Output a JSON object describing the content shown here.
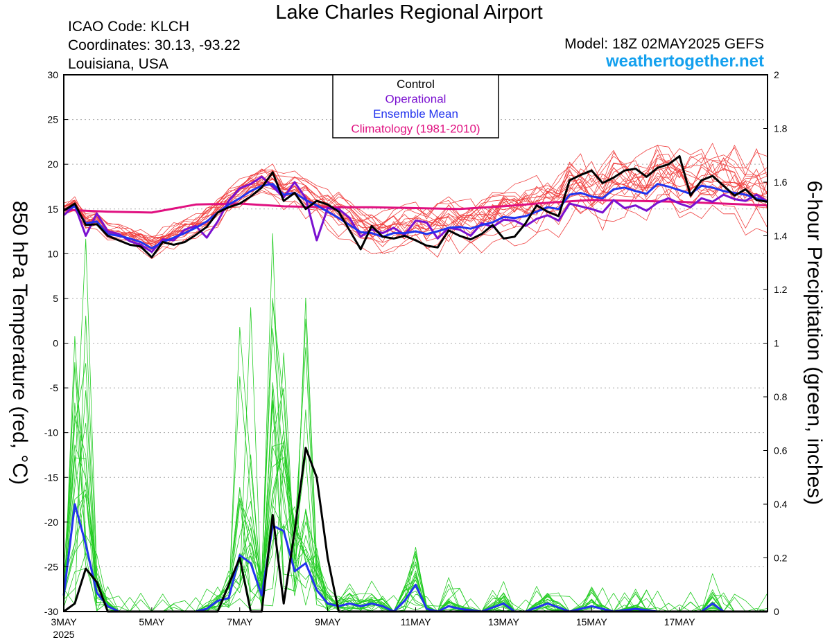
{
  "header": {
    "title": "Lake Charles Regional Airport",
    "icao": "ICAO Code: KLCH",
    "coordinates": "Coordinates: 30.13, -93.22",
    "region": "Louisiana, USA",
    "model": "Model: 18Z 02MAY2025 GEFS",
    "site": "weathertogether.net"
  },
  "colors": {
    "control": "#000000",
    "operational": "#7a10d0",
    "ensemble_mean": "#2233ee",
    "climatology": "#e01080",
    "members_temp": "#f04040",
    "members_precip": "#22cc22"
  },
  "chart_data": {
    "type": "line",
    "left_axis": {
      "label": "850 hPa Temperature (red, °C)",
      "ylim": [
        -30,
        30
      ],
      "ticks": [
        -30,
        -25,
        -20,
        -15,
        -10,
        -5,
        0,
        5,
        10,
        15,
        20,
        25,
        30
      ]
    },
    "right_axis": {
      "label": "6-hour Precipitation (green, inches)",
      "ylim": [
        0,
        2
      ],
      "ticks": [
        0,
        0.2,
        0.4,
        0.6,
        0.8,
        1,
        1.2,
        1.4,
        1.6,
        1.8,
        2
      ]
    },
    "x_ticks": [
      "3MAY",
      "5MAY",
      "7MAY",
      "9MAY",
      "11MAY",
      "13MAY",
      "15MAY",
      "17MAY"
    ],
    "x_year": "2025",
    "x_start_day": 3,
    "x_end_day": 19,
    "grid": true,
    "legend": {
      "position": "top-center",
      "items": [
        {
          "label": "Control",
          "color": "#000000"
        },
        {
          "label": "Operational",
          "color": "#7a10d0"
        },
        {
          "label": "Ensemble Mean",
          "color": "#2233ee"
        },
        {
          "label": "Climatology (1981-2010)",
          "color": "#e01080"
        }
      ]
    },
    "temperature": {
      "climatology": [
        [
          3.0,
          14.9
        ],
        [
          3.5,
          14.8
        ],
        [
          4.0,
          14.7
        ],
        [
          5.0,
          14.6
        ],
        [
          6.0,
          15.5
        ],
        [
          7.0,
          15.6
        ],
        [
          8.0,
          15.3
        ],
        [
          9.0,
          15.2
        ],
        [
          10.0,
          15.2
        ],
        [
          11.0,
          15.1
        ],
        [
          12.0,
          15.0
        ],
        [
          13.0,
          15.3
        ],
        [
          14.0,
          15.7
        ],
        [
          15.0,
          16.0
        ],
        [
          16.0,
          15.9
        ],
        [
          17.0,
          15.8
        ],
        [
          18.0,
          15.6
        ],
        [
          19.0,
          15.4
        ]
      ],
      "control": [
        [
          3.0,
          14.8
        ],
        [
          3.25,
          15.6
        ],
        [
          3.5,
          13.2
        ],
        [
          3.75,
          13.3
        ],
        [
          4.0,
          12.0
        ],
        [
          4.25,
          11.5
        ],
        [
          4.5,
          11.0
        ],
        [
          4.75,
          10.8
        ],
        [
          5.0,
          9.6
        ],
        [
          5.25,
          11.3
        ],
        [
          5.5,
          11.0
        ],
        [
          5.75,
          11.3
        ],
        [
          6.0,
          12.1
        ],
        [
          6.25,
          13.0
        ],
        [
          6.5,
          14.6
        ],
        [
          6.75,
          15.2
        ],
        [
          7.0,
          15.6
        ],
        [
          7.25,
          16.4
        ],
        [
          7.5,
          17.4
        ],
        [
          7.75,
          19.1
        ],
        [
          8.0,
          15.9
        ],
        [
          8.25,
          16.8
        ],
        [
          8.5,
          15.0
        ],
        [
          8.75,
          15.9
        ],
        [
          9.0,
          15.5
        ],
        [
          9.25,
          14.7
        ],
        [
          9.5,
          12.6
        ],
        [
          9.75,
          10.5
        ],
        [
          10.0,
          13.1
        ],
        [
          10.25,
          11.9
        ],
        [
          10.5,
          11.7
        ],
        [
          10.75,
          12.0
        ],
        [
          11.0,
          11.5
        ],
        [
          11.25,
          10.9
        ],
        [
          11.5,
          10.7
        ],
        [
          11.75,
          12.6
        ],
        [
          12.0,
          12.0
        ],
        [
          12.25,
          11.6
        ],
        [
          12.5,
          12.2
        ],
        [
          12.75,
          13.2
        ],
        [
          13.0,
          11.7
        ],
        [
          13.25,
          11.9
        ],
        [
          13.5,
          13.4
        ],
        [
          13.75,
          15.4
        ],
        [
          14.0,
          14.7
        ],
        [
          14.25,
          14.2
        ],
        [
          14.5,
          18.2
        ],
        [
          14.75,
          18.8
        ],
        [
          15.0,
          19.3
        ],
        [
          15.25,
          17.9
        ],
        [
          15.5,
          18.5
        ],
        [
          15.75,
          19.3
        ],
        [
          16.0,
          19.5
        ],
        [
          16.25,
          18.6
        ],
        [
          16.5,
          19.6
        ],
        [
          16.75,
          20.0
        ],
        [
          17.0,
          20.9
        ],
        [
          17.25,
          16.5
        ],
        [
          17.5,
          18.2
        ],
        [
          17.75,
          18.7
        ],
        [
          18.0,
          17.6
        ],
        [
          18.25,
          16.5
        ],
        [
          18.5,
          17.2
        ],
        [
          18.75,
          16.0
        ],
        [
          19.0,
          15.8
        ]
      ],
      "operational": [
        [
          3.0,
          14.3
        ],
        [
          3.25,
          15.4
        ],
        [
          3.5,
          12.0
        ],
        [
          3.75,
          14.5
        ],
        [
          4.0,
          12.5
        ],
        [
          4.25,
          12.2
        ],
        [
          4.5,
          11.4
        ],
        [
          4.75,
          11.0
        ],
        [
          5.0,
          10.2
        ],
        [
          5.25,
          11.6
        ],
        [
          5.5,
          11.5
        ],
        [
          5.75,
          12.7
        ],
        [
          6.0,
          13.1
        ],
        [
          6.25,
          11.8
        ],
        [
          6.5,
          13.6
        ],
        [
          6.75,
          15.9
        ],
        [
          7.0,
          17.3
        ],
        [
          7.25,
          17.8
        ],
        [
          7.5,
          18.6
        ],
        [
          7.75,
          17.5
        ],
        [
          8.0,
          16.3
        ],
        [
          8.25,
          18.0
        ],
        [
          8.5,
          16.2
        ],
        [
          8.75,
          11.5
        ],
        [
          9.0,
          15.1
        ],
        [
          9.25,
          15.0
        ],
        [
          9.5,
          14.0
        ],
        [
          9.75,
          11.9
        ],
        [
          10.0,
          12.7
        ],
        [
          10.25,
          12.3
        ],
        [
          10.5,
          12.9
        ],
        [
          10.75,
          12.1
        ],
        [
          11.0,
          13.7
        ],
        [
          11.25,
          13.5
        ],
        [
          11.5,
          11.7
        ],
        [
          11.75,
          12.9
        ],
        [
          12.0,
          12.7
        ],
        [
          12.25,
          12.0
        ],
        [
          12.5,
          13.4
        ],
        [
          12.75,
          13.0
        ],
        [
          13.0,
          13.8
        ],
        [
          13.25,
          13.7
        ],
        [
          13.5,
          13.1
        ],
        [
          13.75,
          13.9
        ],
        [
          14.0,
          14.3
        ],
        [
          14.25,
          13.7
        ],
        [
          14.5,
          15.6
        ],
        [
          14.75,
          15.3
        ],
        [
          15.0,
          15.0
        ],
        [
          15.25,
          14.6
        ],
        [
          15.5,
          16.0
        ],
        [
          15.75,
          15.1
        ],
        [
          16.0,
          15.4
        ],
        [
          16.25,
          14.8
        ],
        [
          16.5,
          15.7
        ],
        [
          16.75,
          16.2
        ],
        [
          17.0,
          15.6
        ],
        [
          17.25,
          15.2
        ],
        [
          17.5,
          16.2
        ],
        [
          17.75,
          15.8
        ],
        [
          18.0,
          16.6
        ],
        [
          18.25,
          16.1
        ],
        [
          18.5,
          15.9
        ],
        [
          18.75,
          16.6
        ],
        [
          19.0,
          15.8
        ]
      ],
      "ensemble_mean": [
        [
          3.0,
          14.9
        ],
        [
          3.25,
          15.3
        ],
        [
          3.5,
          13.4
        ],
        [
          3.75,
          13.6
        ],
        [
          4.0,
          12.2
        ],
        [
          4.25,
          12.0
        ],
        [
          4.5,
          11.7
        ],
        [
          4.75,
          11.3
        ],
        [
          5.0,
          10.6
        ],
        [
          5.25,
          11.3
        ],
        [
          5.5,
          11.8
        ],
        [
          5.75,
          12.3
        ],
        [
          6.0,
          12.9
        ],
        [
          6.25,
          13.6
        ],
        [
          6.5,
          14.6
        ],
        [
          6.75,
          15.5
        ],
        [
          7.0,
          16.2
        ],
        [
          7.25,
          17.0
        ],
        [
          7.5,
          17.6
        ],
        [
          7.75,
          17.8
        ],
        [
          8.0,
          16.6
        ],
        [
          8.25,
          16.8
        ],
        [
          8.5,
          16.0
        ],
        [
          8.75,
          15.4
        ],
        [
          9.0,
          14.7
        ],
        [
          9.25,
          14.0
        ],
        [
          9.5,
          13.2
        ],
        [
          9.75,
          12.4
        ],
        [
          10.0,
          12.3
        ],
        [
          10.25,
          11.9
        ],
        [
          10.5,
          12.3
        ],
        [
          10.75,
          12.3
        ],
        [
          11.0,
          12.5
        ],
        [
          11.25,
          12.2
        ],
        [
          11.5,
          12.5
        ],
        [
          11.75,
          12.9
        ],
        [
          12.0,
          13.0
        ],
        [
          12.25,
          12.8
        ],
        [
          12.5,
          13.2
        ],
        [
          12.75,
          13.5
        ],
        [
          13.0,
          14.1
        ],
        [
          13.25,
          14.0
        ],
        [
          13.5,
          14.2
        ],
        [
          13.75,
          14.7
        ],
        [
          14.0,
          15.2
        ],
        [
          14.25,
          15.0
        ],
        [
          14.5,
          16.6
        ],
        [
          14.75,
          16.8
        ],
        [
          15.0,
          16.4
        ],
        [
          15.25,
          16.2
        ],
        [
          15.5,
          17.2
        ],
        [
          15.75,
          17.4
        ],
        [
          16.0,
          17.0
        ],
        [
          16.25,
          16.7
        ],
        [
          16.5,
          17.8
        ],
        [
          16.75,
          17.5
        ],
        [
          17.0,
          17.1
        ],
        [
          17.25,
          16.7
        ],
        [
          17.5,
          17.6
        ],
        [
          17.75,
          17.4
        ],
        [
          18.0,
          17.0
        ],
        [
          18.25,
          16.8
        ],
        [
          18.5,
          16.6
        ],
        [
          18.75,
          16.2
        ],
        [
          19.0,
          15.8
        ]
      ]
    },
    "precipitation": {
      "control": [
        [
          3.0,
          0.0
        ],
        [
          3.25,
          0.03
        ],
        [
          3.5,
          0.16
        ],
        [
          3.75,
          0.11
        ],
        [
          4.0,
          0.0
        ],
        [
          6.25,
          0.0
        ],
        [
          6.5,
          0.0
        ],
        [
          7.0,
          0.2
        ],
        [
          7.25,
          0.0
        ],
        [
          7.5,
          0.0
        ],
        [
          7.75,
          0.36
        ],
        [
          8.0,
          0.03
        ],
        [
          8.25,
          0.3
        ],
        [
          8.5,
          0.61
        ],
        [
          8.75,
          0.5
        ],
        [
          9.0,
          0.2
        ],
        [
          9.25,
          0.0
        ],
        [
          19.0,
          0.0
        ]
      ],
      "ensemble_mean": [
        [
          3.0,
          0.06
        ],
        [
          3.25,
          0.4
        ],
        [
          3.5,
          0.25
        ],
        [
          3.75,
          0.07
        ],
        [
          4.0,
          0.02
        ],
        [
          4.25,
          0.0
        ],
        [
          6.0,
          0.0
        ],
        [
          6.25,
          0.01
        ],
        [
          6.5,
          0.04
        ],
        [
          6.75,
          0.05
        ],
        [
          7.0,
          0.21
        ],
        [
          7.25,
          0.18
        ],
        [
          7.5,
          0.06
        ],
        [
          7.75,
          0.32
        ],
        [
          8.0,
          0.3
        ],
        [
          8.25,
          0.15
        ],
        [
          8.5,
          0.18
        ],
        [
          8.75,
          0.08
        ],
        [
          9.0,
          0.03
        ],
        [
          9.25,
          0.02
        ],
        [
          9.5,
          0.03
        ],
        [
          9.75,
          0.02
        ],
        [
          10.0,
          0.03
        ],
        [
          10.25,
          0.02
        ],
        [
          10.5,
          0.0
        ],
        [
          10.75,
          0.04
        ],
        [
          11.0,
          0.1
        ],
        [
          11.25,
          0.01
        ],
        [
          11.5,
          0.0
        ],
        [
          11.75,
          0.02
        ],
        [
          12.0,
          0.01
        ],
        [
          12.5,
          0.0
        ],
        [
          13.0,
          0.03
        ],
        [
          13.25,
          0.0
        ],
        [
          13.5,
          0.0
        ],
        [
          14.0,
          0.03
        ],
        [
          14.5,
          0.0
        ],
        [
          15.0,
          0.02
        ],
        [
          15.5,
          0.0
        ],
        [
          16.0,
          0.01
        ],
        [
          16.5,
          0.0
        ],
        [
          17.0,
          0.0
        ],
        [
          17.5,
          0.0
        ],
        [
          17.75,
          0.03
        ],
        [
          18.0,
          0.0
        ],
        [
          19.0,
          0.0
        ]
      ]
    }
  }
}
